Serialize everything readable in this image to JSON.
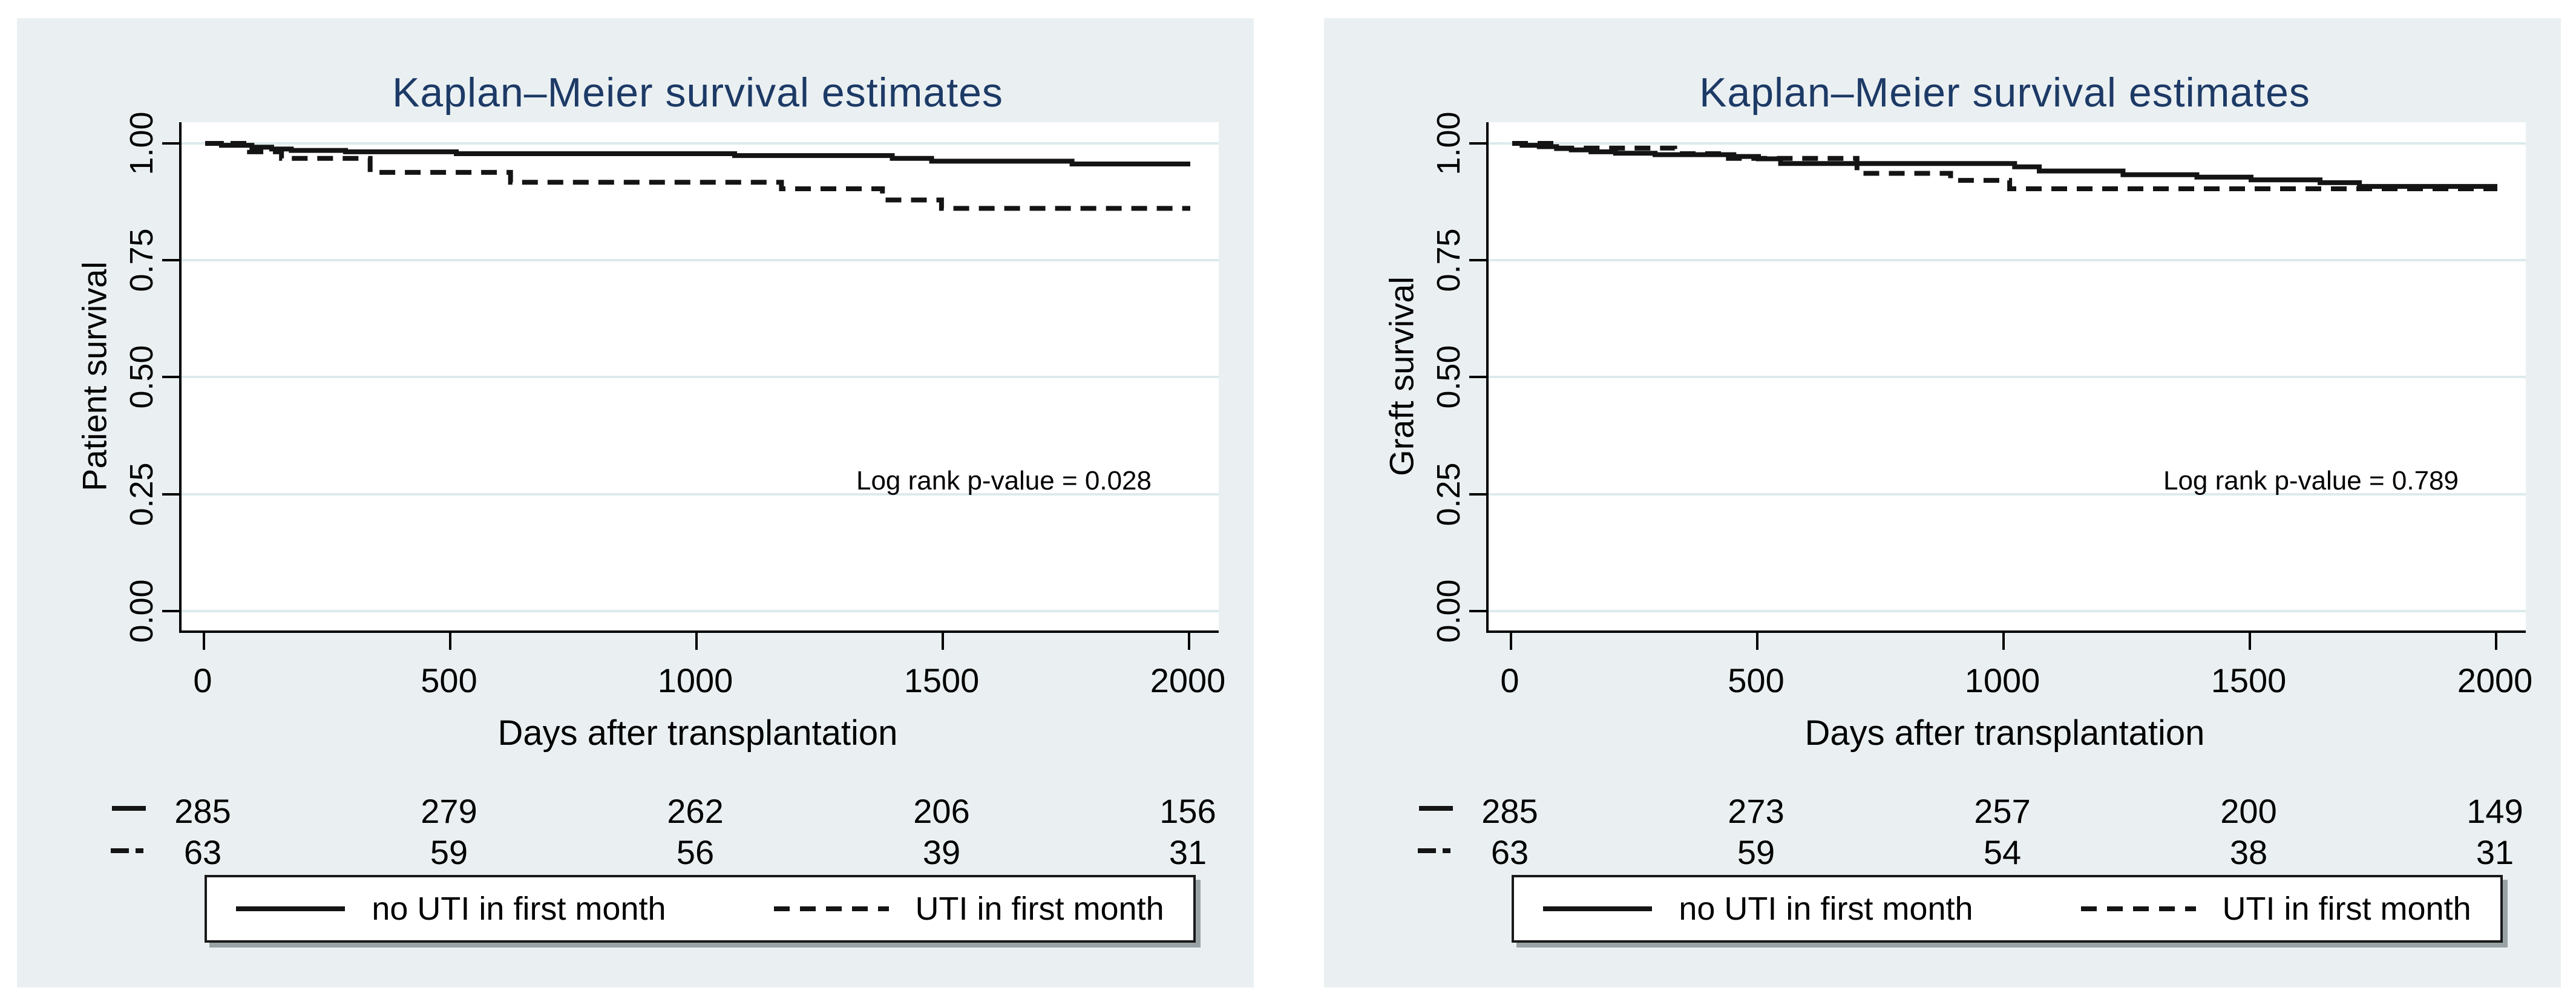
{
  "figure": {
    "description": "Two Kaplan-Meier survival panels comparing kidney transplant recipients with and without UTI in first month",
    "colors": {
      "page_bg": "#ffffff",
      "panel_bg": "#eaf0f2",
      "plot_bg": "#ffffff",
      "gridline": "#dceaec",
      "axis": "#000000",
      "title_text": "#1d3a66",
      "curve": "#141414",
      "legend_shadow": "#99a3a6"
    }
  },
  "chart_data": [
    {
      "type": "line",
      "subtype": "kaplan-meier-step",
      "title": "Kaplan–Meier survival estimates",
      "xlabel": "Days after transplantation",
      "ylabel": "Patient survival",
      "annotation": "Log rank p-value = 0.028",
      "xlim": [
        0,
        2000
      ],
      "ylim": [
        0.0,
        1.0
      ],
      "xticks": [
        0,
        500,
        1000,
        1500,
        2000
      ],
      "yticklabels": [
        "1.00",
        "0.75",
        "0.50",
        "0.25",
        "0.00"
      ],
      "grid": "horizontal",
      "legend_position": "bottom-box",
      "series": [
        {
          "name": "no UTI in first month",
          "line": "solid",
          "at_risk": [
            285,
            279,
            262,
            206,
            156
          ],
          "steps": [
            [
              0,
              1.0
            ],
            [
              33,
              0.996
            ],
            [
              95,
              0.992
            ],
            [
              135,
              0.988
            ],
            [
              175,
              0.985
            ],
            [
              285,
              0.982
            ],
            [
              510,
              0.978
            ],
            [
              1075,
              0.974
            ],
            [
              1395,
              0.968
            ],
            [
              1475,
              0.962
            ],
            [
              1760,
              0.956
            ]
          ]
        },
        {
          "name": "UTI in first month",
          "line": "dashed",
          "at_risk": [
            63,
            59,
            56,
            39,
            31
          ],
          "steps": [
            [
              0,
              1.0
            ],
            [
              90,
              0.982
            ],
            [
              155,
              0.968
            ],
            [
              335,
              0.938
            ],
            [
              620,
              0.917
            ],
            [
              1170,
              0.903
            ],
            [
              1375,
              0.879
            ],
            [
              1495,
              0.861
            ]
          ]
        }
      ]
    },
    {
      "type": "line",
      "subtype": "kaplan-meier-step",
      "title": "Kaplan–Meier survival estimates",
      "xlabel": "Days after transplantation",
      "ylabel": "Graft survival",
      "annotation": "Log rank p-value = 0.789",
      "xlim": [
        0,
        2000
      ],
      "ylim": [
        0.0,
        1.0
      ],
      "xticks": [
        0,
        500,
        1000,
        1500,
        2000
      ],
      "yticklabels": [
        "1.00",
        "0.75",
        "0.50",
        "0.25",
        "0.00"
      ],
      "grid": "horizontal",
      "legend_position": "bottom-box",
      "series": [
        {
          "name": "no UTI in first month",
          "line": "solid",
          "at_risk": [
            285,
            273,
            257,
            200,
            149
          ],
          "steps": [
            [
              0,
              1.0
            ],
            [
              20,
              0.996
            ],
            [
              55,
              0.993
            ],
            [
              90,
              0.989
            ],
            [
              120,
              0.986
            ],
            [
              160,
              0.982
            ],
            [
              210,
              0.979
            ],
            [
              290,
              0.976
            ],
            [
              450,
              0.972
            ],
            [
              500,
              0.967
            ],
            [
              545,
              0.957
            ],
            [
              1020,
              0.95
            ],
            [
              1070,
              0.941
            ],
            [
              1240,
              0.933
            ],
            [
              1390,
              0.928
            ],
            [
              1500,
              0.922
            ],
            [
              1640,
              0.916
            ],
            [
              1720,
              0.908
            ]
          ]
        },
        {
          "name": "UTI in first month",
          "line": "dashed",
          "at_risk": [
            63,
            59,
            54,
            38,
            31
          ],
          "steps": [
            [
              0,
              1.0
            ],
            [
              85,
              0.99
            ],
            [
              330,
              0.978
            ],
            [
              430,
              0.968
            ],
            [
              700,
              0.936
            ],
            [
              890,
              0.921
            ],
            [
              1010,
              0.903
            ]
          ]
        }
      ]
    }
  ]
}
